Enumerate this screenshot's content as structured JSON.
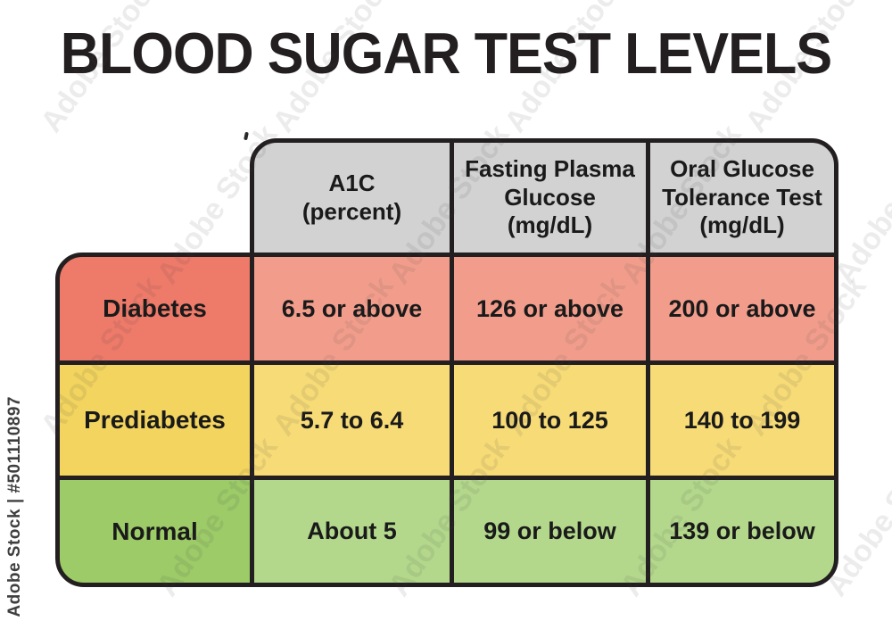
{
  "title": "BLOOD SUGAR TEST LEVELS",
  "watermark": {
    "tile_text": "Adobe Stock",
    "side_text": "Adobe Stock | #501110897"
  },
  "chart_data": {
    "type": "table",
    "title": "BLOOD SUGAR TEST LEVELS",
    "columns": [
      "A1C (percent)",
      "Fasting Plasma Glucose (mg/dL)",
      "Oral Glucose Tolerance Test (mg/dL)"
    ],
    "columns_display": [
      "A1C\n(percent)",
      "Fasting Plasma\nGlucose\n(mg/dL)",
      "Oral Glucose\nTolerance Test\n(mg/dL)"
    ],
    "header_bg": "#d2d2d2",
    "rows": [
      {
        "category": "Diabetes",
        "values": [
          "6.5 or above",
          "126 or above",
          "200 or above"
        ],
        "label_color": "#ee7a6a",
        "value_color": "#f29d8c"
      },
      {
        "category": "Prediabetes",
        "values": [
          "5.7 to 6.4",
          "100 to 125",
          "140 to 199"
        ],
        "label_color": "#f2d45f",
        "value_color": "#f7db76"
      },
      {
        "category": "Normal",
        "values": [
          "About 5",
          "99 or below",
          "139 or below"
        ],
        "label_color": "#9ccb68",
        "value_color": "#b3d88c"
      }
    ]
  }
}
